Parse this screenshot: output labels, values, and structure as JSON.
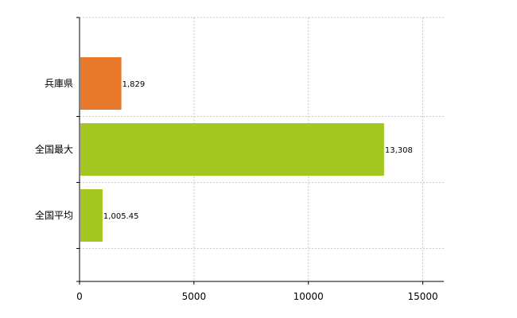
{
  "chart_data": {
    "type": "bar",
    "orientation": "horizontal",
    "categories": [
      "兵庫県",
      "全国最大",
      "全国平均"
    ],
    "values": [
      1829,
      13308,
      1005.45
    ],
    "value_labels": [
      "1,829",
      "13,308",
      "1,005.45"
    ],
    "bar_colors": [
      "#e8782a",
      "#a4c820",
      "#a4c820"
    ],
    "xlim": [
      0,
      16000
    ],
    "xticks": [
      0,
      5000,
      10000,
      15000
    ],
    "xtick_labels": [
      "0",
      "5000",
      "10000",
      "15000"
    ],
    "grid": true,
    "title": "",
    "xlabel": "",
    "ylabel": ""
  }
}
